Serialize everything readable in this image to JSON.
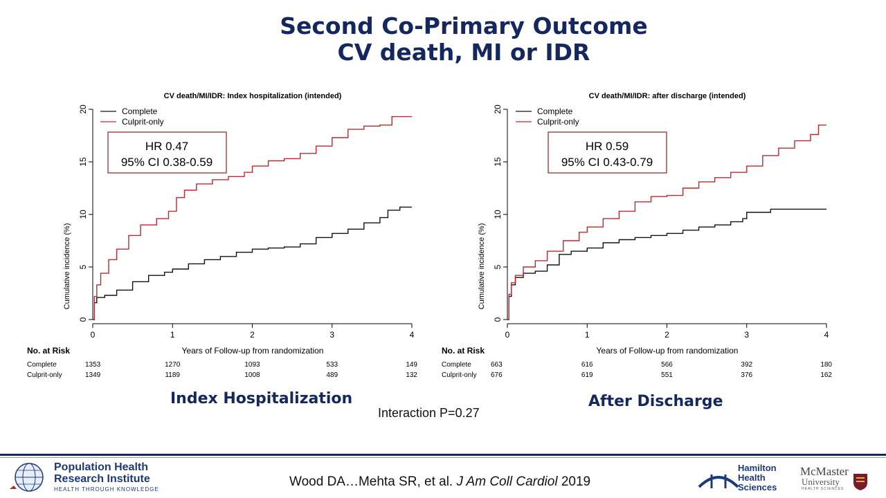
{
  "title": {
    "line1": "Second Co-Primary Outcome",
    "line2": "CV death, MI or IDR"
  },
  "interaction": "Interaction P=0.27",
  "footer": {
    "citation_pre": "Wood DA…Mehta SR, et al. ",
    "citation_journal": "J Am Coll Cardiol",
    "citation_year": " 2019",
    "phri_line1": "Population Health",
    "phri_line2": "Research Institute",
    "phri_tagline": "HEALTH THROUGH KNOWLEDGE",
    "hhs_line1": "Hamilton",
    "hhs_line2": "Health",
    "hhs_line3": "Sciences",
    "mcm_line1": "McMaster",
    "mcm_line2": "University",
    "mcm_line3": "HEALTH SCIENCES"
  },
  "colors": {
    "title": "#14285f",
    "complete": "#111111",
    "culprit": "#c0272d",
    "hr_box_border": "#8b2020"
  },
  "chart_data": [
    {
      "type": "line",
      "section_label": "Index Hospitalization",
      "title": "CV death/MI/IDR: Index hospitalization (intended)",
      "xlabel": "Years of Follow-up from randomization",
      "ylabel": "Cumulative incidence (%)",
      "xlim": [
        0,
        4
      ],
      "ylim": [
        0,
        20
      ],
      "xticks": [
        "0",
        "1",
        "2",
        "3",
        "4"
      ],
      "yticks": [
        "0",
        "5",
        "10",
        "15",
        "20"
      ],
      "legend": [
        "Complete",
        "Culprit-only"
      ],
      "legend_position": "top-left",
      "hr_text": "HR 0.47",
      "ci_text": "95% CI 0.38-0.59",
      "series": [
        {
          "name": "Complete",
          "points": [
            [
              0,
              0
            ],
            [
              0.02,
              1.6
            ],
            [
              0.05,
              2.1
            ],
            [
              0.15,
              2.3
            ],
            [
              0.3,
              2.8
            ],
            [
              0.5,
              3.6
            ],
            [
              0.7,
              4.2
            ],
            [
              0.9,
              4.5
            ],
            [
              1.0,
              4.8
            ],
            [
              1.2,
              5.3
            ],
            [
              1.4,
              5.7
            ],
            [
              1.6,
              6.0
            ],
            [
              1.8,
              6.4
            ],
            [
              2.0,
              6.7
            ],
            [
              2.2,
              6.8
            ],
            [
              2.4,
              6.9
            ],
            [
              2.6,
              7.2
            ],
            [
              2.8,
              7.8
            ],
            [
              3.0,
              8.2
            ],
            [
              3.2,
              8.6
            ],
            [
              3.4,
              9.2
            ],
            [
              3.6,
              9.7
            ],
            [
              3.7,
              10.4
            ],
            [
              3.85,
              10.7
            ],
            [
              4.0,
              10.7
            ]
          ]
        },
        {
          "name": "Culprit-only",
          "points": [
            [
              0,
              0
            ],
            [
              0.02,
              2.2
            ],
            [
              0.05,
              3.3
            ],
            [
              0.1,
              4.4
            ],
            [
              0.2,
              5.7
            ],
            [
              0.3,
              6.7
            ],
            [
              0.45,
              8.0
            ],
            [
              0.6,
              9.0
            ],
            [
              0.8,
              9.6
            ],
            [
              0.95,
              10.3
            ],
            [
              1.05,
              11.6
            ],
            [
              1.15,
              12.3
            ],
            [
              1.3,
              12.9
            ],
            [
              1.5,
              13.3
            ],
            [
              1.7,
              13.6
            ],
            [
              1.9,
              14.0
            ],
            [
              2.0,
              14.6
            ],
            [
              2.2,
              15.1
            ],
            [
              2.4,
              15.3
            ],
            [
              2.6,
              15.8
            ],
            [
              2.8,
              16.5
            ],
            [
              3.0,
              17.3
            ],
            [
              3.2,
              18.1
            ],
            [
              3.4,
              18.4
            ],
            [
              3.6,
              18.5
            ],
            [
              3.75,
              19.3
            ],
            [
              4.0,
              19.3
            ]
          ]
        }
      ],
      "risk_table": {
        "header": "No. at Risk",
        "rows": [
          {
            "label": "Complete",
            "values": [
              "1353",
              "1270",
              "1093",
              "533",
              "149"
            ]
          },
          {
            "label": "Culprit-only",
            "values": [
              "1349",
              "1189",
              "1008",
              "489",
              "132"
            ]
          }
        ]
      }
    },
    {
      "type": "line",
      "section_label": "After Discharge",
      "title": "CV death/MI/IDR: after discharge (intended)",
      "xlabel": "Years of Follow-up from randomization",
      "ylabel": "Cumulative incidence (%)",
      "xlim": [
        0,
        4
      ],
      "ylim": [
        0,
        20
      ],
      "xticks": [
        "0",
        "1",
        "2",
        "3",
        "4"
      ],
      "yticks": [
        "0",
        "5",
        "10",
        "15",
        "20"
      ],
      "legend": [
        "Complete",
        "Culprit-only"
      ],
      "legend_position": "top-left",
      "hr_text": "HR 0.59",
      "ci_text": "95% CI 0.43-0.79",
      "series": [
        {
          "name": "Complete",
          "points": [
            [
              0,
              0
            ],
            [
              0.02,
              2.2
            ],
            [
              0.05,
              3.3
            ],
            [
              0.1,
              4.0
            ],
            [
              0.2,
              4.4
            ],
            [
              0.35,
              4.6
            ],
            [
              0.5,
              5.2
            ],
            [
              0.65,
              6.2
            ],
            [
              0.8,
              6.5
            ],
            [
              1.0,
              6.8
            ],
            [
              1.2,
              7.3
            ],
            [
              1.4,
              7.6
            ],
            [
              1.6,
              7.8
            ],
            [
              1.8,
              8.0
            ],
            [
              2.0,
              8.2
            ],
            [
              2.2,
              8.5
            ],
            [
              2.4,
              8.8
            ],
            [
              2.6,
              9.0
            ],
            [
              2.8,
              9.3
            ],
            [
              2.95,
              9.6
            ],
            [
              3.0,
              10.2
            ],
            [
              3.3,
              10.5
            ],
            [
              4.0,
              10.5
            ]
          ]
        },
        {
          "name": "Culprit-only",
          "points": [
            [
              0,
              0
            ],
            [
              0.02,
              2.4
            ],
            [
              0.05,
              3.5
            ],
            [
              0.1,
              4.2
            ],
            [
              0.2,
              5.0
            ],
            [
              0.35,
              5.6
            ],
            [
              0.5,
              6.5
            ],
            [
              0.7,
              7.5
            ],
            [
              0.9,
              8.3
            ],
            [
              1.0,
              8.8
            ],
            [
              1.2,
              9.6
            ],
            [
              1.4,
              10.3
            ],
            [
              1.6,
              11.2
            ],
            [
              1.8,
              11.7
            ],
            [
              2.0,
              11.8
            ],
            [
              2.2,
              12.5
            ],
            [
              2.4,
              13.1
            ],
            [
              2.6,
              13.5
            ],
            [
              2.8,
              14.0
            ],
            [
              3.0,
              14.6
            ],
            [
              3.2,
              15.6
            ],
            [
              3.4,
              16.3
            ],
            [
              3.6,
              17.0
            ],
            [
              3.8,
              17.6
            ],
            [
              3.9,
              18.5
            ],
            [
              4.0,
              18.5
            ]
          ]
        }
      ],
      "risk_table": {
        "header": "No. at Risk",
        "rows": [
          {
            "label": "Complete",
            "values": [
              "663",
              "616",
              "566",
              "392",
              "180"
            ]
          },
          {
            "label": "Culprit-only",
            "values": [
              "676",
              "619",
              "551",
              "376",
              "162"
            ]
          }
        ]
      }
    }
  ]
}
